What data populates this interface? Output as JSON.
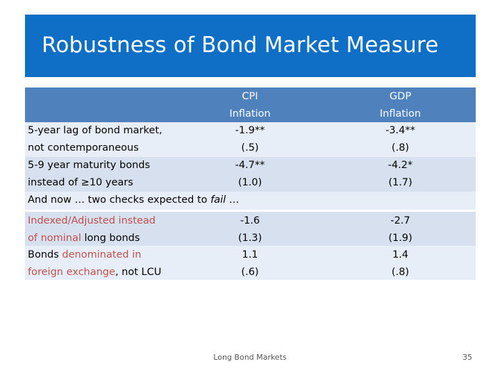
{
  "slide": {
    "title": "Robustness of Bond Market Measure",
    "footer": "Long Bond Markets",
    "page_number": "35"
  },
  "table1": {
    "header": {
      "col1": [
        "CPI",
        "Inflation"
      ],
      "col2": [
        "GDP",
        "Inflation"
      ]
    },
    "rows": [
      {
        "label": [
          "5-year lag of bond market,",
          "not contemporaneous"
        ],
        "col1": [
          "-1.9**",
          "(.5)"
        ],
        "col2": [
          "-3.4**",
          "(.8)"
        ]
      },
      {
        "label": [
          "5-9 year maturity bonds",
          "instead of ≥10 years"
        ],
        "col1": [
          "-4.7**",
          "(1.0)"
        ],
        "col2": [
          "-4.2*",
          "(1.7)"
        ]
      }
    ],
    "note_prefix": "And now … two checks expected to ",
    "note_emph": "fail",
    "note_suffix": " …"
  },
  "table2": {
    "rows": [
      {
        "label_l1_red": "Indexed/Adjusted instead",
        "label_l2_red": "of nominal",
        "label_l2_rest": " long bonds",
        "col1": [
          "-1.6",
          "(1.3)"
        ],
        "col2": [
          "-2.7",
          "(1.9)"
        ]
      },
      {
        "label_l1_pre": "Bonds ",
        "label_l1_red": "denominated in",
        "label_l2_red": "foreign exchange",
        "label_l2_rest": ", not LCU",
        "col1": [
          "1.1",
          "(.6)"
        ],
        "col2": [
          "1.4",
          "(.8)"
        ]
      }
    ]
  }
}
